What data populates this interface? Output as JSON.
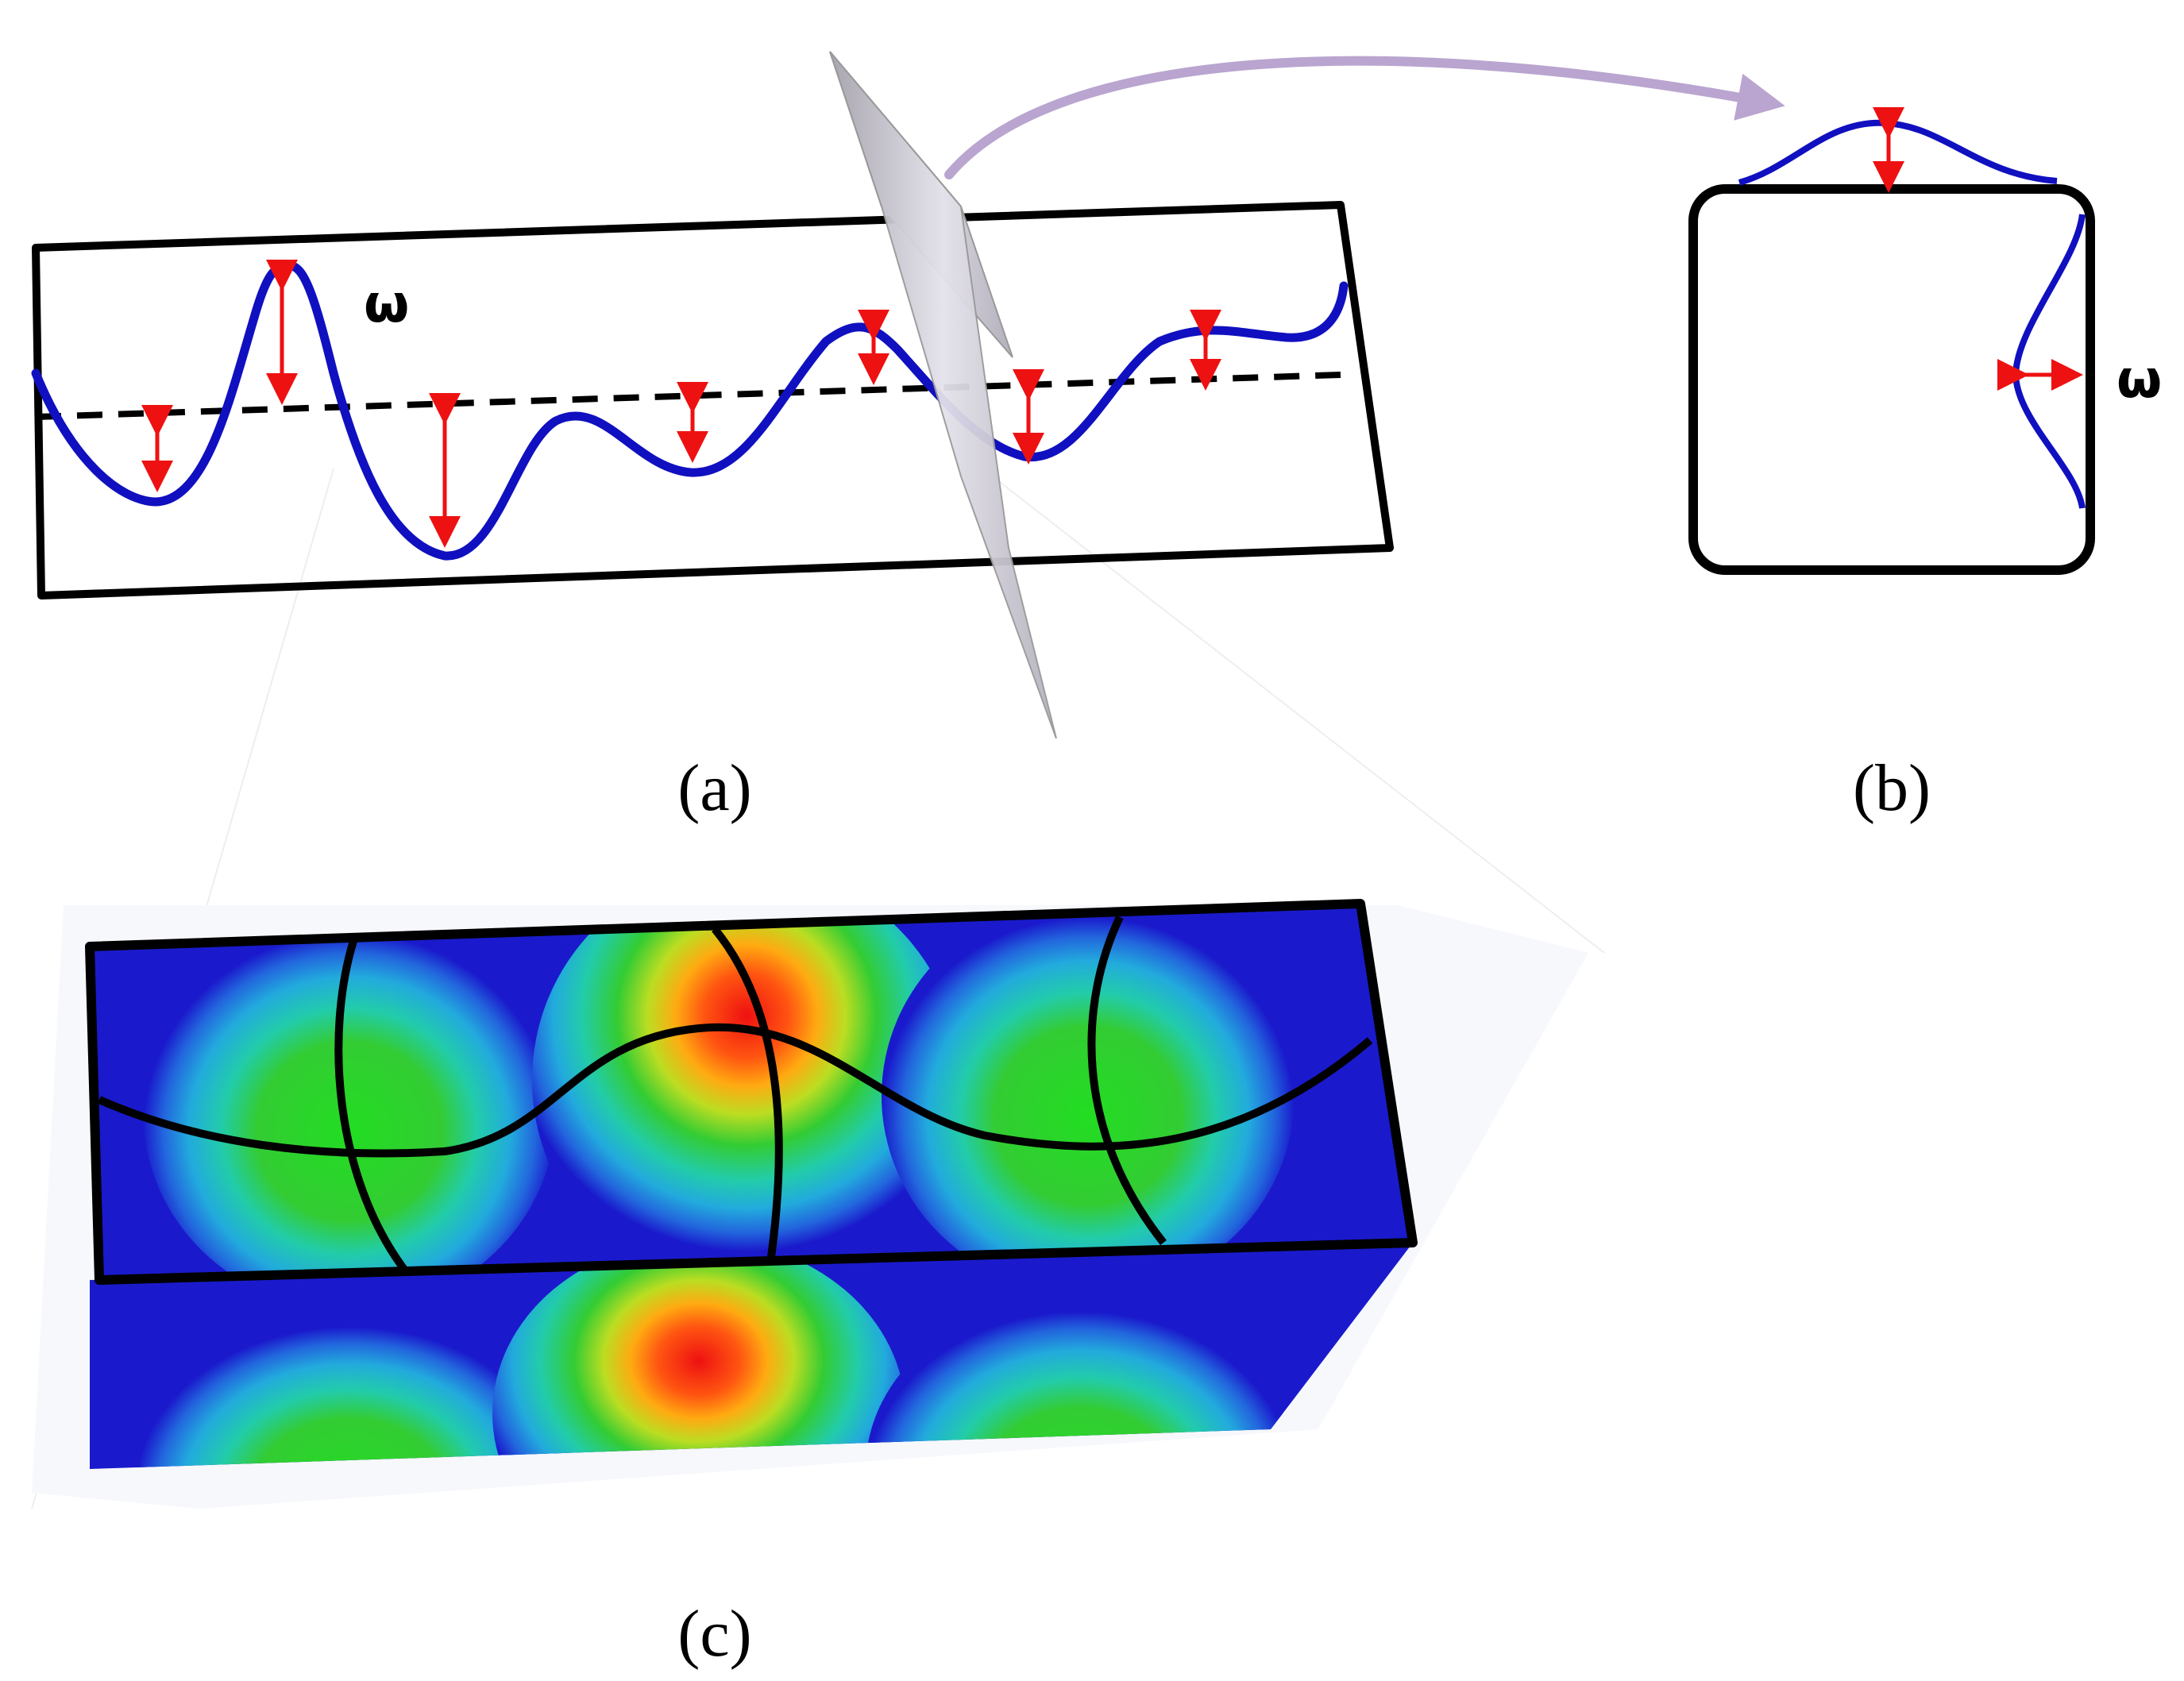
{
  "captions": {
    "a": "(a)",
    "b": "(b)",
    "c": "(c)"
  },
  "symbols": {
    "omega_a": "ω",
    "omega_b": "ω"
  },
  "colors": {
    "wave": "#1010c0",
    "arrow": "#ee1111",
    "frame": "#000000",
    "plane": "#c9c6cf",
    "transfer_arrow": "#b9a5cf",
    "field_low": "#1a1acc",
    "field_mid": "#22cc22",
    "field_high": "#ee1111"
  },
  "icons": {
    "transfer_arrow": "curved-arrow-right-icon",
    "amplitude_arrow": "double-headed-arrow-icon"
  }
}
